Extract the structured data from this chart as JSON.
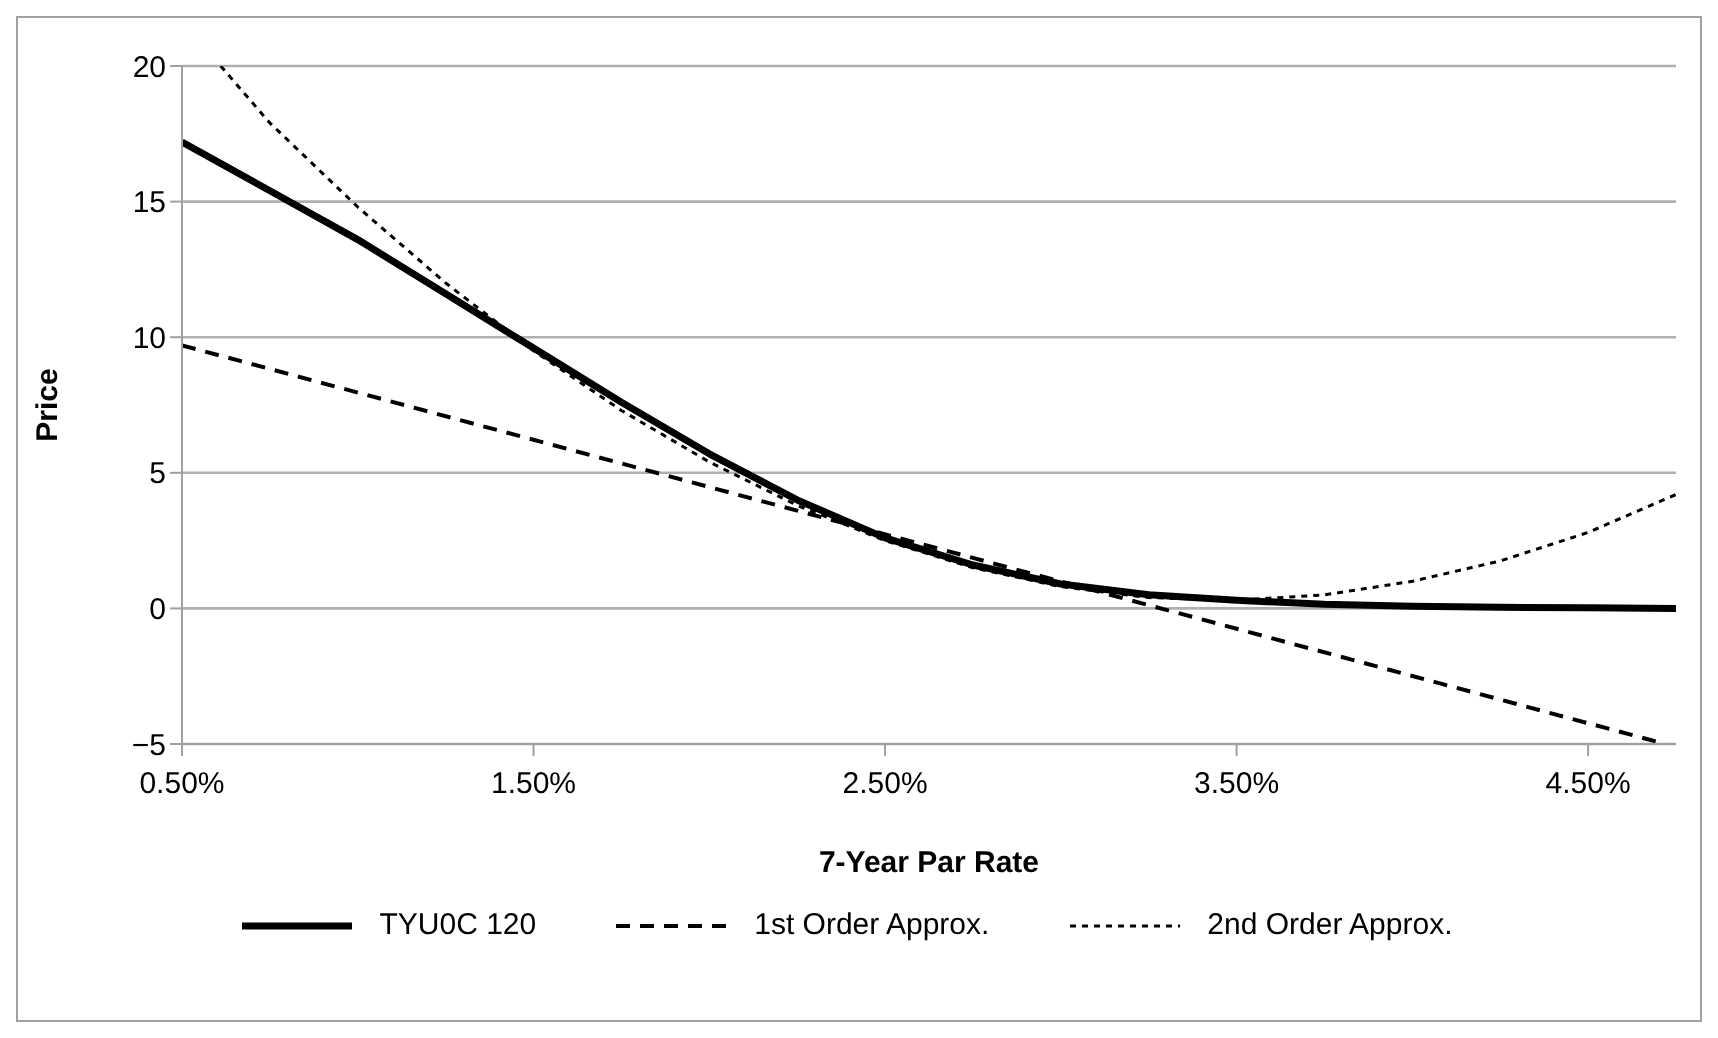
{
  "chart_data": {
    "type": "line",
    "xlabel": "7-Year Par Rate",
    "ylabel": "Price",
    "xlim": [
      0.5,
      4.75
    ],
    "xticks": [
      {
        "value": 0.5,
        "label": "0.50%"
      },
      {
        "value": 1.5,
        "label": "1.50%"
      },
      {
        "value": 2.5,
        "label": "2.50%"
      },
      {
        "value": 3.5,
        "label": "3.50%"
      },
      {
        "value": 4.5,
        "label": "4.50%"
      }
    ],
    "ylim": [
      -5,
      20
    ],
    "yticks": [
      {
        "value": -5,
        "label": "−5"
      },
      0,
      5,
      10,
      15,
      20
    ],
    "grid": "y",
    "legend": "bottom",
    "marker": "none",
    "series": [
      {
        "name": "TYU0C 120",
        "color": "#000000",
        "line_style": "solid",
        "x": [
          0.5,
          0.75,
          1.0,
          1.25,
          1.5,
          1.75,
          2.0,
          2.25,
          2.5,
          2.75,
          3.0,
          3.25,
          3.5,
          3.75,
          4.0,
          4.25,
          4.5,
          4.75
        ],
        "values": [
          17.2,
          15.4,
          13.6,
          11.6,
          9.6,
          7.6,
          5.7,
          4.0,
          2.6,
          1.6,
          0.9,
          0.5,
          0.3,
          0.15,
          0.08,
          0.04,
          0.02,
          0
        ]
      },
      {
        "name": "1st Order Approx.",
        "color": "#000000",
        "line_style": "dashed",
        "x": [
          0.5,
          4.72
        ],
        "values": [
          9.7,
          -5.0
        ]
      },
      {
        "name": "2nd Order Approx.",
        "color": "#000000",
        "line_style": "dotted",
        "x": [
          0.61,
          0.75,
          1.0,
          1.25,
          1.5,
          1.75,
          2.0,
          2.25,
          2.5,
          2.75,
          3.0,
          3.25,
          3.5,
          3.75,
          4.0,
          4.25,
          4.5,
          4.75
        ],
        "values": [
          20,
          17.9,
          14.8,
          12.0,
          9.5,
          7.3,
          5.4,
          3.8,
          2.5,
          1.5,
          0.8,
          0.4,
          0.3,
          0.5,
          1.0,
          1.75,
          2.8,
          4.2
        ]
      }
    ]
  }
}
